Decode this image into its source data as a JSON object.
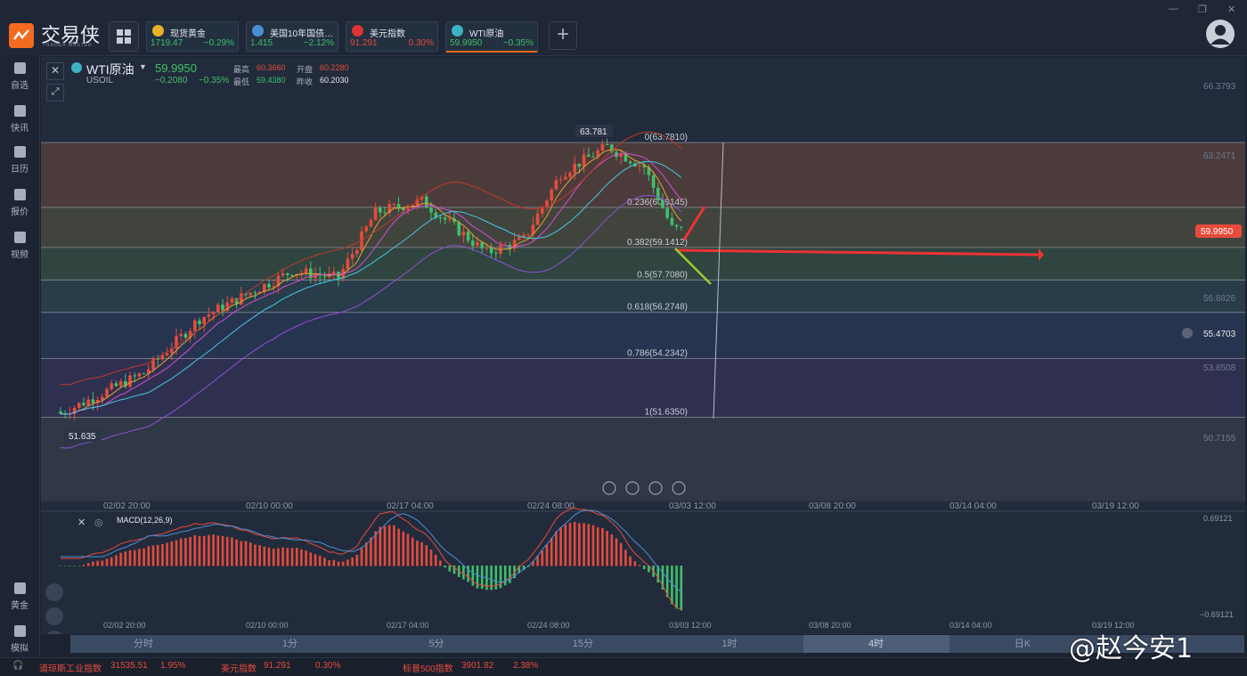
{
  "app": {
    "brand": "交易侠",
    "brand_sub": "TRADER MASTER"
  },
  "tickers": [
    {
      "name": "现货黄金",
      "price": "1719.47",
      "change": "−0.29%",
      "price_color": "#3fbf6b",
      "change_color": "#3fbf6b",
      "icon": "gold-coin-icon",
      "icon_color": "#e8b22a"
    },
    {
      "name": "美国10年国债…",
      "price": "1.415",
      "change": "−2.12%",
      "price_color": "#3fbf6b",
      "change_color": "#3fbf6b",
      "icon": "bar-chart-icon",
      "icon_color": "#4a8fd6"
    },
    {
      "name": "美元指数",
      "price": "91.291",
      "change": "0.30%",
      "price_color": "#e64b3c",
      "change_color": "#e64b3c",
      "icon": "us-flag-icon",
      "icon_color": "#d33"
    },
    {
      "name": "WTI原油",
      "price": "59.9950",
      "change": "−0.35%",
      "price_color": "#3fbf6b",
      "change_color": "#3fbf6b",
      "icon": "oil-icon",
      "icon_color": "#3bb3c3"
    }
  ],
  "sidebar": [
    {
      "label": "自选",
      "icon": "bookmark-icon"
    },
    {
      "label": "快讯",
      "icon": "news-icon"
    },
    {
      "label": "日历",
      "icon": "calendar-icon"
    },
    {
      "label": "报价",
      "icon": "quote-line-icon"
    },
    {
      "label": "视频",
      "icon": "play-icon"
    },
    {
      "label": "黄金",
      "icon": "gold-calc-icon"
    },
    {
      "label": "模拟",
      "icon": "wallet-icon"
    }
  ],
  "symbol": {
    "name": "WTI原油",
    "code": "USOIL",
    "last": "59.9950",
    "change": "−0.2080",
    "change_pct": "−0.35%",
    "high_label": "最高",
    "high": "60.3660",
    "open_label": "开盘",
    "open": "60.2280",
    "low_label": "最低",
    "low": "59.4380",
    "prev_label": "昨收",
    "prev": "60.2030"
  },
  "price_axis": [
    "66.3793",
    "63.2471",
    "59.9950",
    "56.8826",
    "55.4703",
    "53.8508",
    "50.7155"
  ],
  "current_price_tag": "59.9950",
  "alert_price": "55.4703",
  "peak_label": "63.781",
  "trough_label": "51.635",
  "fib_levels": [
    {
      "label": "0(63.7810)",
      "ratio": 0,
      "price": 63.781
    },
    {
      "label": "0.236(60.9145)",
      "ratio": 0.236,
      "price": 60.9145
    },
    {
      "label": "0.382(59.1412)",
      "ratio": 0.382,
      "price": 59.1412
    },
    {
      "label": "0.5(57.7080)",
      "ratio": 0.5,
      "price": 57.708
    },
    {
      "label": "0.618(56.2748)",
      "ratio": 0.618,
      "price": 56.2748
    },
    {
      "label": "0.786(54.2342)",
      "ratio": 0.786,
      "price": 54.2342
    },
    {
      "label": "1(51.6350)",
      "ratio": 1,
      "price": 51.635
    }
  ],
  "time_axis": [
    "02/02 20:00",
    "02/10 00:00",
    "02/17 04:00",
    "02/24 08:00",
    "03/03 12:00",
    "03/08 20:00",
    "03/14 04:00",
    "03/19 12:00"
  ],
  "macd": {
    "label": "MACD(12,26,9)",
    "axis_top": "0.69121",
    "axis_bottom": "−0.69121"
  },
  "tabs": [
    "分时",
    "1分",
    "5分",
    "15分",
    "1时",
    "4时",
    "日K"
  ],
  "active_tab": "4时",
  "status": [
    {
      "name": "道琼斯工业指数",
      "value": "31535.51",
      "change": "1.95%"
    },
    {
      "name": "美元指数",
      "value": "91.291",
      "change": "0.30%"
    },
    {
      "name": "标普500指数",
      "value": "3901.82",
      "change": "2.38%"
    }
  ],
  "watermark": "@赵今安1",
  "colors": {
    "up": "#e64b3c",
    "down": "#3fbf6b",
    "bg": "#222b3b",
    "accent": "#f26b21"
  }
}
